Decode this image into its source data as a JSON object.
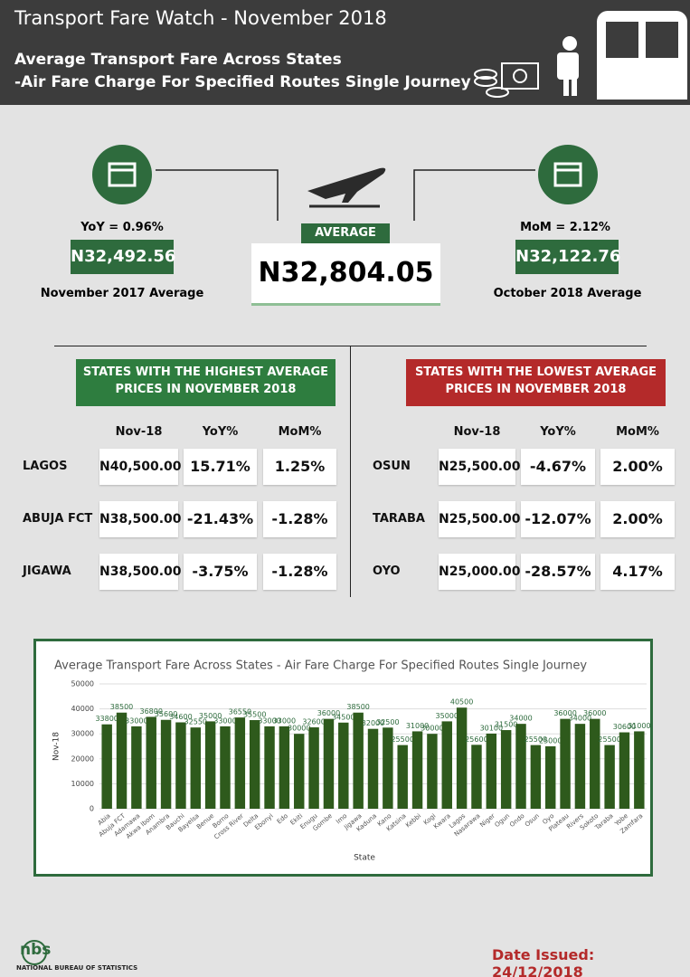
{
  "header": {
    "title": "Transport Fare Watch - November 2018",
    "subtitle_line1": "Average Transport Fare Across States",
    "subtitle_line2": "-Air Fare Charge For Specified Routes Single Journey"
  },
  "summary": {
    "yoy": "YoY = 0.96%",
    "prev_value": "N32,492.56",
    "prev_label": "November 2017 Average",
    "average_label": "AVERAGE",
    "average": "N32,804.05",
    "mom": "MoM = 2.12%",
    "mom_value": "N32,122.76",
    "mom_label": "October 2018 Average"
  },
  "highest": {
    "title_line1": "STATES WITH THE HIGHEST AVERAGE",
    "title_line2": "PRICES IN NOVEMBER 2018",
    "columns": [
      "Nov-18",
      "YoY%",
      "MoM%"
    ],
    "rows": [
      [
        "LAGOS",
        "N40,500.00",
        "15.71%",
        "1.25%"
      ],
      [
        "ABUJA FCT",
        "N38,500.00",
        "-21.43%",
        "-1.28%"
      ],
      [
        "JIGAWA",
        "N38,500.00",
        "-3.75%",
        "-1.28%"
      ]
    ]
  },
  "lowest": {
    "title_line1": "STATES WITH THE LOWEST AVERAGE",
    "title_line2": "PRICES IN NOVEMBER 2018",
    "columns": [
      "Nov-18",
      "YoY%",
      "MoM%"
    ],
    "rows": [
      [
        "OSUN",
        "N25,500.00",
        "-4.67%",
        "2.00%"
      ],
      [
        "TARABA",
        "N25,500.00",
        "-12.07%",
        "2.00%"
      ],
      [
        "OYO",
        "N25,000.00",
        "-28.57%",
        "4.17%"
      ]
    ]
  },
  "chart_data": {
    "type": "bar",
    "title": "Average Transport Fare Across States - Air Fare Charge For Specified Routes Single Journey",
    "x_label": "State",
    "y_label": "Nov-18",
    "categories": [
      "Abia",
      "Abuja FCT",
      "Adamawa",
      "Akwa Ibom",
      "Anambra",
      "Bauchi",
      "Bayelsa",
      "Benue",
      "Borno",
      "Cross River",
      "Delta",
      "Ebonyi",
      "Edo",
      "Ekiti",
      "Enugu",
      "Gombe",
      "Imo",
      "Jigawa",
      "Kaduna",
      "Kano",
      "Katsina",
      "Kebbi",
      "Kogi",
      "Kwara",
      "Lagos",
      "Nasarawa",
      "Niger",
      "Ogun",
      "Ondo",
      "Osun",
      "Oyo",
      "Plateau",
      "Rivers",
      "Sokoto",
      "Taraba",
      "Yobe",
      "Zamfara"
    ],
    "values": [
      33800,
      38500,
      33000,
      36800,
      35600,
      34600,
      32550,
      35000,
      33000,
      36550,
      35500,
      33000,
      33000,
      30000,
      32600,
      36000,
      34500,
      38500,
      32000,
      32500,
      25500,
      31000,
      30000,
      35000,
      40500,
      25600,
      30100,
      31500,
      34000,
      25500,
      25000,
      36000,
      34000,
      36000,
      25500,
      30600,
      31000
    ],
    "color": "#2e5a1c",
    "ylim": [
      0,
      50000
    ],
    "yticks": [
      0,
      10000,
      20000,
      30000,
      40000,
      50000
    ],
    "grid": true
  },
  "footer": {
    "logo": "nbs",
    "org": "NATIONAL BUREAU OF STATISTICS",
    "date": "Date Issued: 24/12/2018"
  }
}
